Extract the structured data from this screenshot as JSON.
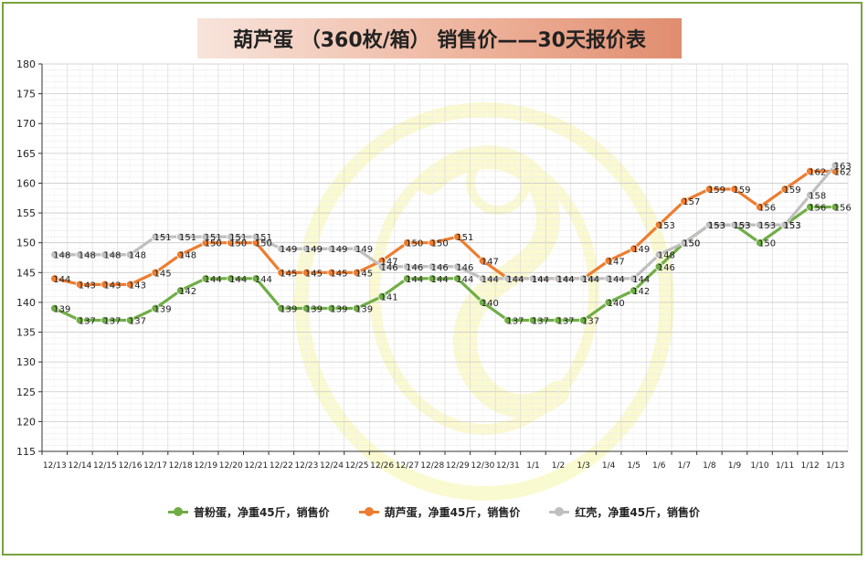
{
  "chart_data": {
    "type": "line",
    "title": "葫芦蛋 （360枚/箱） 销售价——30天报价表",
    "xlabel": "",
    "ylabel": "",
    "ylim": [
      115,
      180
    ],
    "yticks": [
      115,
      120,
      125,
      130,
      135,
      140,
      145,
      150,
      155,
      160,
      165,
      170,
      175,
      180
    ],
    "grid": true,
    "legend_position": "bottom",
    "categories": [
      "12/13",
      "12/14",
      "12/15",
      "12/16",
      "12/17",
      "12/18",
      "12/19",
      "12/20",
      "12/21",
      "12/22",
      "12/23",
      "12/24",
      "12/25",
      "12/26",
      "12/27",
      "12/28",
      "12/29",
      "12/30",
      "12/31",
      "1/1",
      "1/2",
      "1/3",
      "1/4",
      "1/5",
      "1/6",
      "1/7",
      "1/8",
      "1/9",
      "1/10",
      "1/11",
      "1/12",
      "1/13"
    ],
    "series": [
      {
        "name": "普粉蛋，净重45斤，销售价",
        "color": "#70ad47",
        "values": [
          139,
          137,
          137,
          137,
          139,
          142,
          144,
          144,
          144,
          139,
          139,
          139,
          139,
          141,
          144,
          144,
          144,
          140,
          137,
          137,
          137,
          137,
          140,
          142,
          146,
          150,
          153,
          153,
          150,
          153,
          156,
          156
        ]
      },
      {
        "name": "葫芦蛋，净重45斤，销售价",
        "color": "#ed7d31",
        "values": [
          144,
          143,
          143,
          143,
          145,
          148,
          150,
          150,
          150,
          145,
          145,
          145,
          145,
          147,
          150,
          150,
          151,
          147,
          144,
          144,
          144,
          144,
          147,
          149,
          153,
          157,
          159,
          159,
          156,
          159,
          162,
          162
        ]
      },
      {
        "name": "红壳，净重45斤，销售价",
        "color": "#bfbfbf",
        "values": [
          148,
          148,
          148,
          148,
          151,
          151,
          151,
          151,
          151,
          149,
          149,
          149,
          149,
          146,
          146,
          146,
          146,
          144,
          144,
          144,
          144,
          144,
          144,
          144,
          148,
          150,
          153,
          153,
          153,
          153,
          158,
          163
        ]
      }
    ]
  }
}
